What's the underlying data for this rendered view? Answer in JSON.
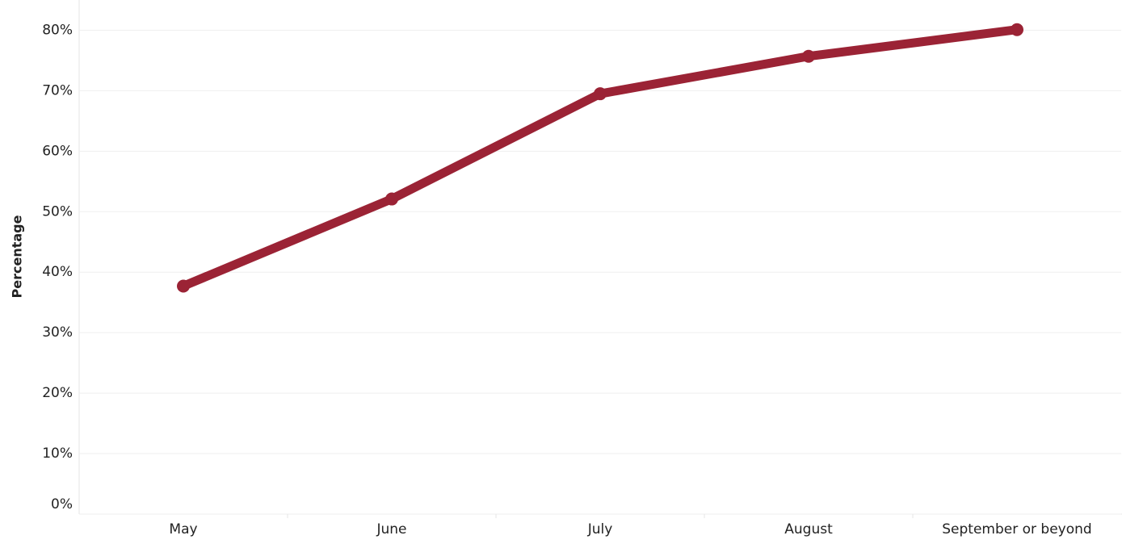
{
  "chart_data": {
    "type": "line",
    "y_label": "Percentage",
    "categories": [
      "May",
      "June",
      "July",
      "August",
      "September or beyond"
    ],
    "values": [
      37.7,
      52.1,
      69.5,
      75.7,
      80.1
    ],
    "color": "#9b2335",
    "ylim": [
      0,
      85
    ],
    "yticks": [
      {
        "value": 0,
        "label": "0%"
      },
      {
        "value": 10,
        "label": "10%"
      },
      {
        "value": 20,
        "label": "20%"
      },
      {
        "value": 30,
        "label": "30%"
      },
      {
        "value": 40,
        "label": "40%"
      },
      {
        "value": 50,
        "label": "50%"
      },
      {
        "value": 60,
        "label": "60%"
      },
      {
        "value": 70,
        "label": "70%"
      },
      {
        "value": 80,
        "label": "80%"
      }
    ],
    "grid": true
  }
}
